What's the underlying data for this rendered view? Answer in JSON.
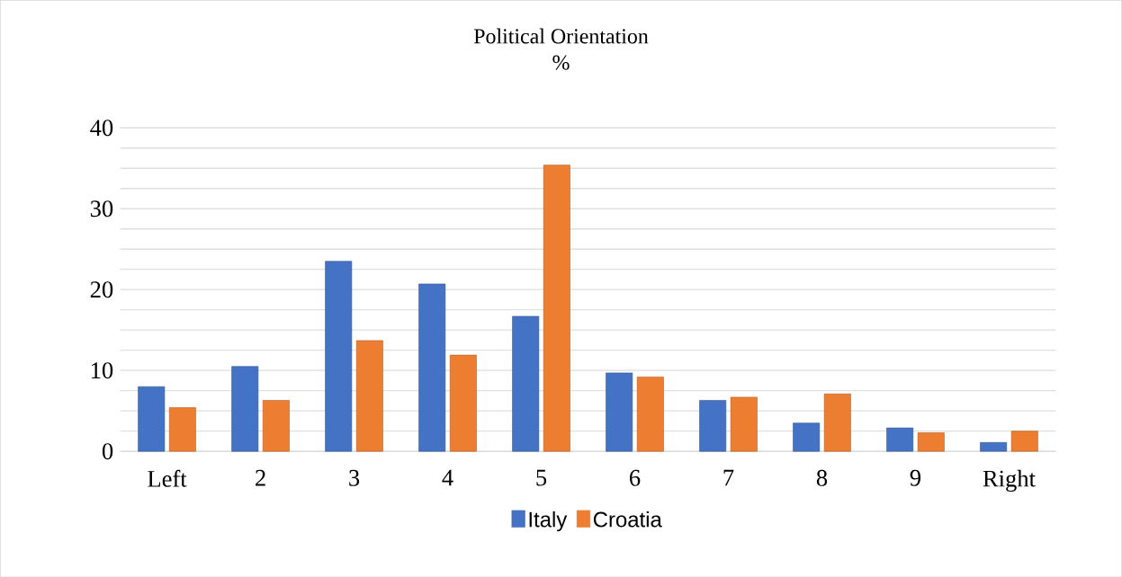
{
  "chart_data": {
    "type": "bar",
    "title": "Political Orientation",
    "subtitle": "%",
    "categories": [
      "Left",
      "2",
      "3",
      "4",
      "5",
      "6",
      "7",
      "8",
      "9",
      "Right"
    ],
    "series": [
      {
        "name": "Italy",
        "color": "#4472c4",
        "values": [
          8.0,
          10.5,
          23.5,
          20.7,
          16.7,
          9.7,
          6.3,
          3.5,
          2.9,
          1.1
        ]
      },
      {
        "name": "Croatia",
        "color": "#ed7d31",
        "values": [
          5.4,
          6.3,
          13.7,
          11.9,
          35.4,
          9.2,
          6.7,
          7.1,
          2.3,
          2.5
        ]
      }
    ],
    "ylim": [
      0,
      40
    ],
    "yticks": [
      0,
      {
        "value": 2.5,
        "label": null
      },
      {
        "value": 5,
        "label": null
      },
      {
        "value": 7.5,
        "label": null
      },
      10,
      {
        "value": 12.5,
        "label": null
      },
      {
        "value": 15,
        "label": null
      },
      {
        "value": 17.5,
        "label": null
      },
      20,
      {
        "value": 22.5,
        "label": null
      },
      {
        "value": 25,
        "label": null
      },
      {
        "value": 27.5,
        "label": null
      },
      30,
      {
        "value": 32.5,
        "label": null
      },
      {
        "value": 35,
        "label": null
      },
      {
        "value": 37.5,
        "label": null
      },
      40
    ],
    "grid": "y",
    "legend": "bottom"
  }
}
